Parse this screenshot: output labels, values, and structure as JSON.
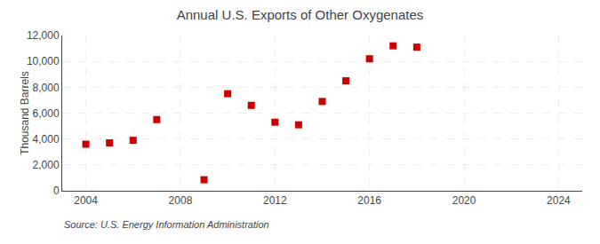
{
  "chart_data": {
    "type": "scatter",
    "title": "Annual U.S. Exports of Other Oxygenates",
    "ylabel": "Thousand Barrels",
    "annotation": "Source: U.S. Energy Information Administration",
    "x": [
      2004,
      2005,
      2006,
      2007,
      2009,
      2010,
      2011,
      2012,
      2013,
      2014,
      2015,
      2016,
      2017,
      2018
    ],
    "values": [
      3600,
      3700,
      3900,
      5500,
      850,
      7500,
      6600,
      5300,
      5100,
      6900,
      8500,
      10200,
      11200,
      11100
    ],
    "color": "#cc0000",
    "marker": "square",
    "xlim": [
      2003,
      2025
    ],
    "ylim": [
      0,
      12000
    ],
    "xticks": [
      2004,
      2008,
      2012,
      2016,
      2020,
      2024
    ],
    "yticks": [
      0,
      {
        "value": 2000,
        "label": "2,000"
      },
      {
        "value": 4000,
        "label": "4,000"
      },
      {
        "value": 6000,
        "label": "6,000"
      },
      {
        "value": 8000,
        "label": "8,000"
      },
      {
        "value": 10000,
        "label": "10,000"
      },
      {
        "value": 12000,
        "label": "12,000"
      }
    ],
    "grid": true
  }
}
